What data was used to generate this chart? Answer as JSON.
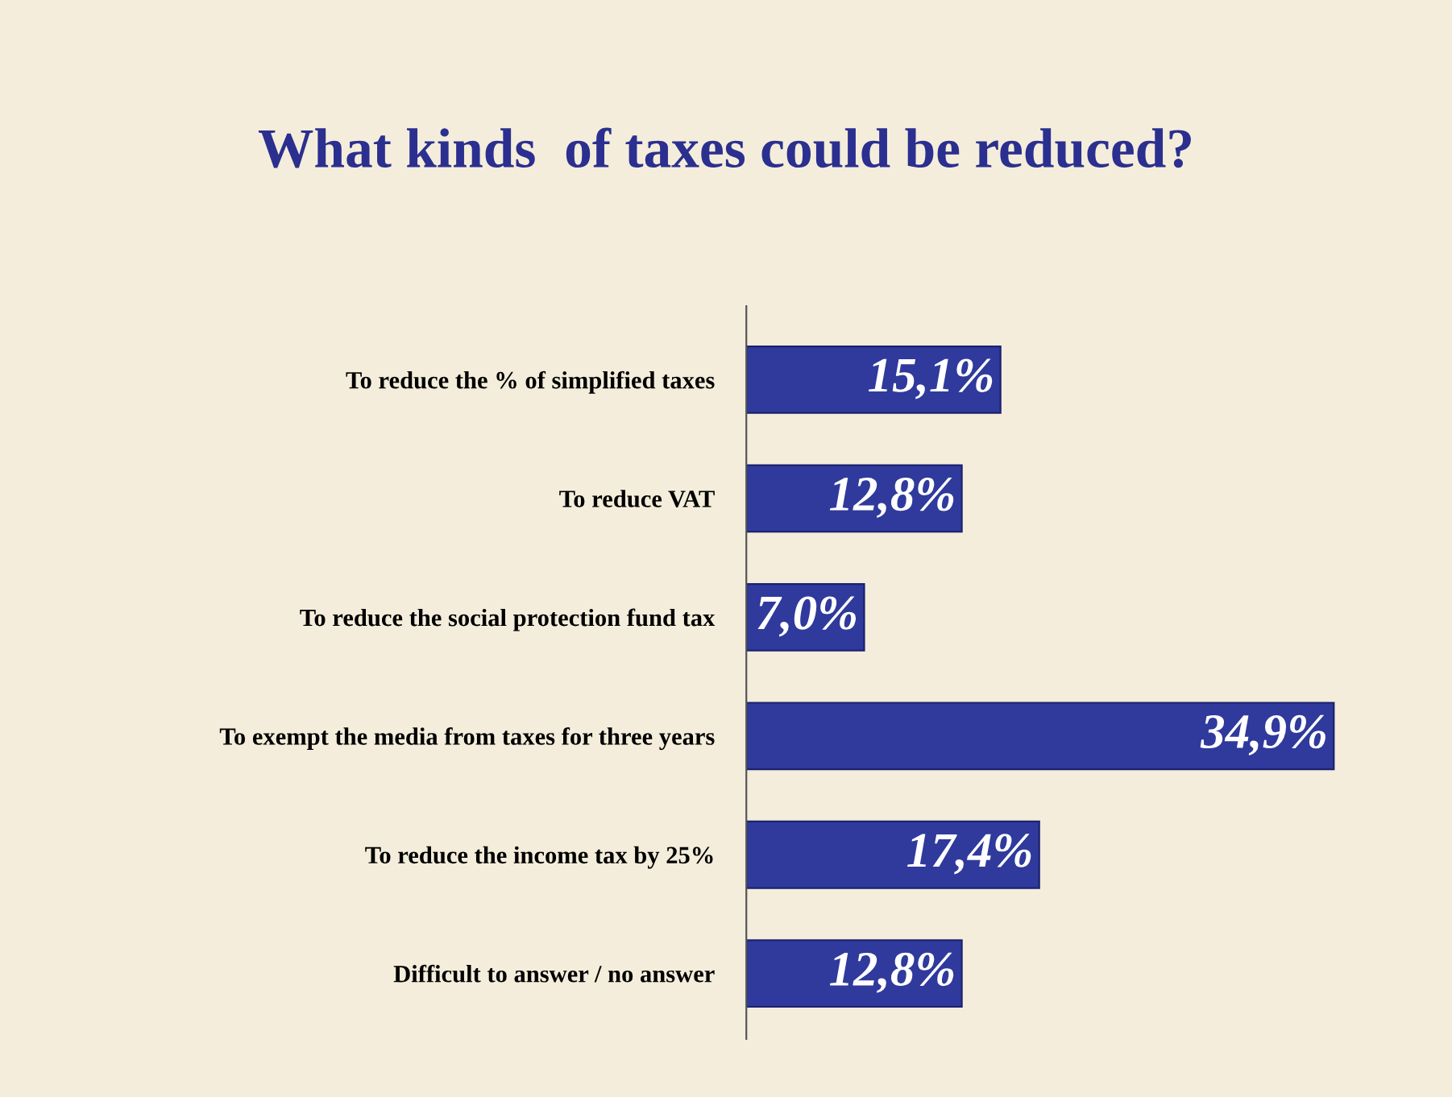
{
  "chart_data": {
    "type": "bar",
    "orientation": "horizontal",
    "title": "What kinds  of taxes could be reduced?",
    "categories": [
      "To reduce the % of simplified taxes",
      "To reduce VAT",
      "To reduce the social protection fund tax",
      "To exempt the media from taxes for three years",
      "To reduce the income tax by 25%",
      "Difficult to answer / no answer"
    ],
    "values": [
      15.1,
      12.8,
      7.0,
      34.9,
      17.4,
      12.8
    ],
    "value_labels": [
      "15,1%",
      "12,8%",
      "7,0%",
      "34,9%",
      "17,4%",
      "12,8%"
    ],
    "color": "#2f3a9c",
    "grid": false,
    "legend": false
  }
}
